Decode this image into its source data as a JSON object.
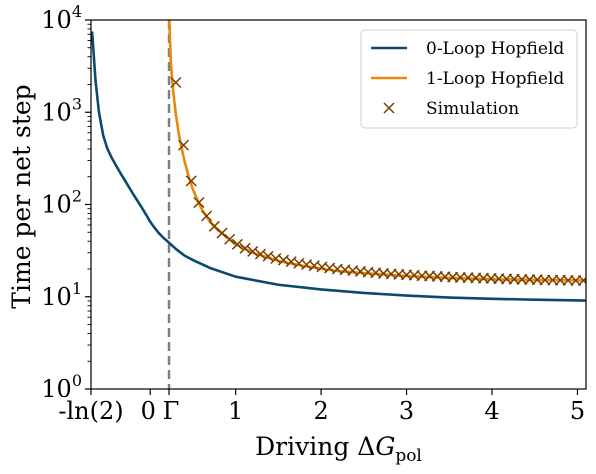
{
  "chart_data": {
    "type": "line",
    "xlabel": "Driving ΔG",
    "xlabel_subscript": "pol",
    "ylabel": "Time per net step",
    "y_scale": "log",
    "xlim": [
      -0.693,
      5.1
    ],
    "ylim": [
      1,
      10000
    ],
    "grid": false,
    "legend_position": "top-right",
    "x_ticks": [
      {
        "value": -0.693,
        "label": "-ln(2)"
      },
      {
        "value": 0,
        "label": "0"
      },
      {
        "value": 0.22,
        "label": "Γ"
      },
      {
        "value": 1,
        "label": "1"
      },
      {
        "value": 2,
        "label": "2"
      },
      {
        "value": 3,
        "label": "3"
      },
      {
        "value": 4,
        "label": "4"
      },
      {
        "value": 5,
        "label": "5"
      }
    ],
    "y_ticks": [
      {
        "value": 1,
        "base": "10",
        "exp": "0"
      },
      {
        "value": 10,
        "base": "10",
        "exp": "1"
      },
      {
        "value": 100,
        "base": "10",
        "exp": "2"
      },
      {
        "value": 1000,
        "base": "10",
        "exp": "3"
      },
      {
        "value": 10000,
        "base": "10",
        "exp": "4"
      }
    ],
    "vline": {
      "x": 0.22,
      "color": "#808080"
    },
    "series": [
      {
        "name": "0-Loop Hopfield",
        "kind": "line",
        "color": "#0b4a6f",
        "x": [
          -0.68,
          -0.64,
          -0.6,
          -0.55,
          -0.5,
          -0.45,
          -0.4,
          -0.35,
          -0.3,
          -0.25,
          -0.2,
          -0.15,
          -0.1,
          -0.05,
          0,
          0.05,
          0.1,
          0.15,
          0.2,
          0.3,
          0.4,
          0.5,
          0.7,
          1.0,
          1.5,
          2.0,
          2.5,
          3.0,
          3.5,
          4.0,
          4.5,
          5.1
        ],
        "y": [
          7500,
          2200,
          1000,
          560,
          400,
          320,
          265,
          220,
          185,
          155,
          130,
          110,
          93,
          78,
          65,
          56,
          49,
          44,
          40,
          33,
          28,
          25,
          20.5,
          16.5,
          13.5,
          12,
          11,
          10.3,
          9.8,
          9.5,
          9.3,
          9.1
        ]
      },
      {
        "name": "1-Loop Hopfield",
        "kind": "line",
        "color": "#e8890c",
        "x": [
          0.222,
          0.225,
          0.23,
          0.24,
          0.25,
          0.27,
          0.3,
          0.33,
          0.36,
          0.4,
          0.45,
          0.5,
          0.6,
          0.7,
          0.8,
          1.0,
          1.2,
          1.5,
          1.8,
          2.2,
          2.6,
          3.0,
          3.5,
          4.0,
          4.5,
          5.1
        ],
        "y": [
          12000,
          9500,
          6500,
          3800,
          2700,
          1650,
          950,
          620,
          440,
          300,
          200,
          145,
          90,
          65,
          52,
          37,
          30,
          24.5,
          21.5,
          19,
          17.8,
          16.8,
          16,
          15.5,
          15.2,
          15
        ]
      },
      {
        "name": "Simulation",
        "kind": "scatter",
        "color": "#7a3f00",
        "x": [
          0.3,
          0.39,
          0.48,
          0.57,
          0.66,
          0.75,
          0.84,
          0.93,
          1.02,
          1.11,
          1.2,
          1.29,
          1.38,
          1.47,
          1.56,
          1.65,
          1.74,
          1.83,
          1.92,
          2.01,
          2.1,
          2.19,
          2.28,
          2.37,
          2.46,
          2.55,
          2.64,
          2.73,
          2.82,
          2.91,
          3.0,
          3.09,
          3.18,
          3.27,
          3.36,
          3.45,
          3.54,
          3.63,
          3.72,
          3.81,
          3.9,
          3.99,
          4.08,
          4.17,
          4.26,
          4.35,
          4.44,
          4.53,
          4.62,
          4.71,
          4.8,
          4.89,
          4.98,
          5.07
        ],
        "y": [
          2100,
          440,
          180,
          105,
          75,
          58,
          49,
          42,
          37,
          33.5,
          31,
          29,
          27.5,
          26,
          25,
          24,
          23,
          22.3,
          21.7,
          21,
          20.5,
          20,
          19.6,
          19.2,
          18.8,
          18.5,
          18.2,
          17.9,
          17.7,
          17.5,
          17.3,
          17.1,
          16.9,
          16.8,
          16.6,
          16.5,
          16.3,
          16.2,
          16.1,
          16,
          15.9,
          15.8,
          15.7,
          15.6,
          15.5,
          15.4,
          15.35,
          15.3,
          15.2,
          15.15,
          15.1,
          15.05,
          15,
          15
        ]
      }
    ]
  }
}
